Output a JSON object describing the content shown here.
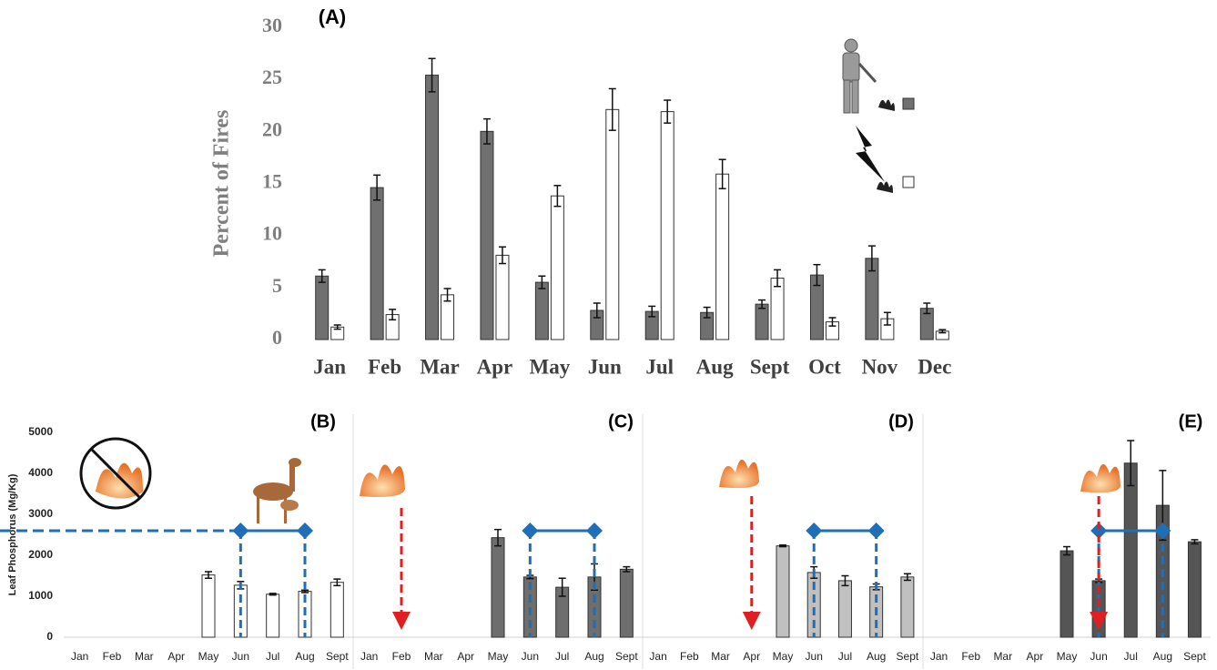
{
  "chart_data": [
    {
      "type": "bar",
      "title": "(A)",
      "y_label": "Percent of Fires",
      "categories": [
        "Jan",
        "Feb",
        "Mar",
        "Apr",
        "May",
        "Jun",
        "Jul",
        "Aug",
        "Sept",
        "Oct",
        "Nov",
        "Dec"
      ],
      "series": [
        {
          "color": "#707070",
          "values": [
            6.1,
            14.6,
            25.4,
            20.0,
            5.5,
            2.8,
            2.7,
            2.6,
            3.4,
            6.2,
            7.8,
            3.0
          ],
          "errors": [
            0.6,
            1.2,
            1.6,
            1.2,
            0.6,
            0.7,
            0.5,
            0.5,
            0.4,
            1.0,
            1.2,
            0.5
          ]
        },
        {
          "color": "#ffffff",
          "values": [
            1.2,
            2.4,
            4.3,
            8.1,
            13.8,
            22.1,
            21.9,
            15.9,
            5.9,
            1.7,
            2.0,
            0.8
          ],
          "errors": [
            0.2,
            0.5,
            0.6,
            0.8,
            1.0,
            2.0,
            1.1,
            1.4,
            0.8,
            0.4,
            0.6,
            0.15
          ]
        }
      ],
      "ylim": [
        0,
        30
      ],
      "yticks": [
        0,
        5,
        10,
        15,
        20,
        25,
        30
      ]
    },
    {
      "type": "bar",
      "title": "(B)",
      "y_label": "Leaf Phosphorus (Mg/Kg)",
      "categories": [
        "Jan",
        "Feb",
        "Mar",
        "Apr",
        "May",
        "Jun",
        "Jul",
        "Aug",
        "Sept"
      ],
      "values": [
        null,
        null,
        null,
        null,
        1520,
        1270,
        1050,
        1120,
        1340
      ],
      "errors": [
        null,
        null,
        null,
        null,
        80,
        90,
        20,
        30,
        80
      ],
      "color": "#ffffff",
      "ylim": [
        0,
        5000
      ],
      "yticks": [
        0,
        1000,
        2000,
        3000,
        4000,
        5000
      ]
    },
    {
      "type": "bar",
      "title": "(C)",
      "categories": [
        "Jan",
        "Feb",
        "Mar",
        "Apr",
        "May",
        "Jun",
        "Jul",
        "Aug",
        "Sept"
      ],
      "values": [
        null,
        null,
        null,
        null,
        2430,
        1470,
        1220,
        1470,
        1660
      ],
      "errors": [
        null,
        null,
        null,
        null,
        200,
        40,
        220,
        320,
        60
      ],
      "color": "#6e6e6e",
      "ylim": [
        0,
        5000
      ]
    },
    {
      "type": "bar",
      "title": "(D)",
      "categories": [
        "Jan",
        "Feb",
        "Mar",
        "Apr",
        "May",
        "Jun",
        "Jul",
        "Aug",
        "Sept"
      ],
      "values": [
        null,
        null,
        null,
        null,
        2230,
        1580,
        1380,
        1230,
        1470
      ],
      "errors": [
        null,
        null,
        null,
        null,
        20,
        140,
        120,
        70,
        80
      ],
      "color": "#c0c0c0",
      "ylim": [
        0,
        5000
      ]
    },
    {
      "type": "bar",
      "title": "(E)",
      "categories": [
        "Jan",
        "Feb",
        "Mar",
        "Apr",
        "May",
        "Jun",
        "Jul",
        "Aug",
        "Sept"
      ],
      "values": [
        null,
        null,
        null,
        null,
        2110,
        1380,
        4250,
        3220,
        2330
      ],
      "errors": [
        null,
        null,
        null,
        null,
        100,
        40,
        550,
        850,
        50
      ],
      "color": "#555555",
      "ylim": [
        0,
        5000
      ]
    }
  ]
}
